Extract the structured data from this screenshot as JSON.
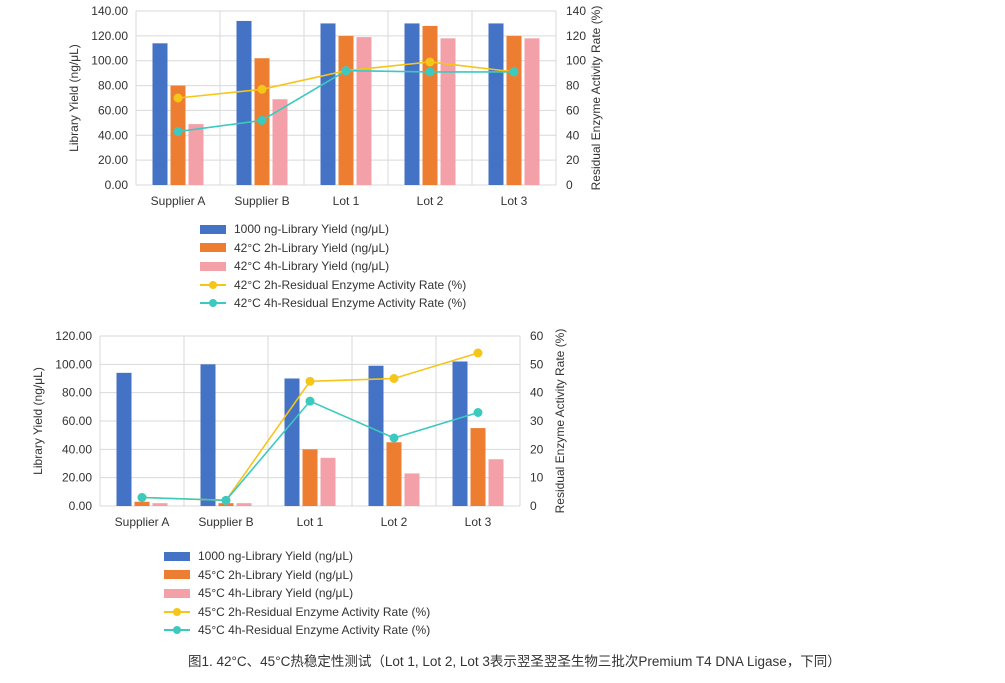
{
  "charts": [
    {
      "chart_data": {
        "type": "bar",
        "categories": [
          "Supplier A",
          "Supplier B",
          "Lot 1",
          "Lot 2",
          "Lot 3"
        ],
        "left_axis": {
          "label": "Library Yield (ng/μL)",
          "ylim": [
            0,
            140
          ],
          "ticks": [
            "0.00",
            "20.00",
            "40.00",
            "60.00",
            "80.00",
            "100.00",
            "120.00",
            "140.00"
          ]
        },
        "right_axis": {
          "label": "Residual Enzyme Activity Rate (%)",
          "ylim": [
            0,
            140
          ],
          "ticks": [
            "0",
            "20",
            "40",
            "60",
            "80",
            "100",
            "120",
            "140"
          ]
        },
        "bar_series": [
          {
            "name": "1000 ng-Library Yield (ng/μL)",
            "color": "#4472c4",
            "values": [
              114,
              132,
              130,
              130,
              130
            ]
          },
          {
            "name": "42°C 2h-Library Yield (ng/μL)",
            "color": "#ed7d31",
            "values": [
              80,
              102,
              120,
              128,
              120
            ]
          },
          {
            "name": "42°C 4h-Library Yield (ng/μL)",
            "color": "#f4a0a8",
            "values": [
              49,
              69,
              119,
              118,
              118
            ]
          }
        ],
        "line_series": [
          {
            "name": "42°C 2h-Residual Enzyme Activity Rate (%)",
            "color": "#f5c518",
            "values": [
              70,
              77,
              92,
              99,
              91
            ]
          },
          {
            "name": "42°C 4h-Residual Enzyme Activity Rate (%)",
            "color": "#3cc9c0",
            "values": [
              43,
              52,
              92,
              91,
              91
            ]
          }
        ],
        "legend_position": "bottom"
      }
    },
    {
      "chart_data": {
        "type": "bar",
        "categories": [
          "Supplier A",
          "Supplier B",
          "Lot 1",
          "Lot 2",
          "Lot 3"
        ],
        "left_axis": {
          "label": "Library Yield (ng/μL)",
          "ylim": [
            0,
            120
          ],
          "ticks": [
            "0.00",
            "20.00",
            "40.00",
            "60.00",
            "80.00",
            "100.00",
            "120.00"
          ]
        },
        "right_axis": {
          "label": "Residual Enzyme Activity Rate (%)",
          "ylim": [
            0,
            60
          ],
          "ticks": [
            "0",
            "10",
            "20",
            "30",
            "40",
            "50",
            "60"
          ]
        },
        "bar_series": [
          {
            "name": "1000 ng-Library Yield (ng/μL)",
            "color": "#4472c4",
            "values": [
              94,
              100,
              90,
              99,
              102
            ]
          },
          {
            "name": "45°C 2h-Library Yield (ng/μL)",
            "color": "#ed7d31",
            "values": [
              3,
              2,
              40,
              45,
              55
            ]
          },
          {
            "name": "45°C 4h-Library Yield (ng/μL)",
            "color": "#f4a0a8",
            "values": [
              2,
              2,
              34,
              23,
              33
            ]
          }
        ],
        "line_series": [
          {
            "name": "45°C 2h-Residual Enzyme Activity Rate (%)",
            "color": "#f5c518",
            "values": [
              3,
              2,
              44,
              45,
              54
            ]
          },
          {
            "name": "45°C 4h-Residual Enzyme Activity Rate (%)",
            "color": "#3cc9c0",
            "values": [
              3,
              2,
              37,
              24,
              33
            ]
          }
        ],
        "legend_position": "bottom"
      }
    }
  ],
  "caption": "图1. 42°C、45°C热稳定性测试（Lot 1, Lot 2, Lot 3表示翌圣翌圣生物三批次Premium T4 DNA Ligase，下同）"
}
